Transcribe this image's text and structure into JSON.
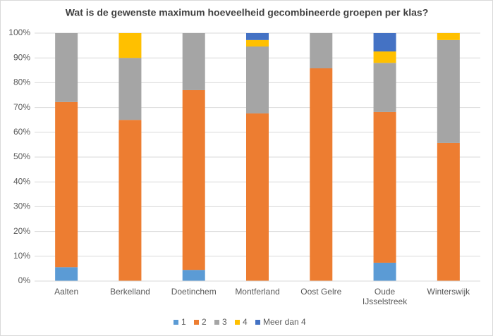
{
  "chart_data": {
    "type": "stacked_bar_percent",
    "title": "Wat is de gewenste maximum hoeveelheid gecombineerde groepen per klas?",
    "categories": [
      "Aalten",
      "Berkelland",
      "Doetinchem",
      "Montferland",
      "Oost Gelre",
      "Oude IJsselstreek",
      "Winterswijk"
    ],
    "series": [
      {
        "name": "1",
        "color": "#5b9bd5",
        "values": [
          5.6,
          0,
          4.5,
          0,
          0,
          7.4,
          0
        ]
      },
      {
        "name": "2",
        "color": "#ed7d31",
        "values": [
          66.6,
          65,
          72.5,
          67.6,
          85.8,
          60.8,
          55.7
        ]
      },
      {
        "name": "3",
        "color": "#a5a5a5",
        "values": [
          27.8,
          25,
          23,
          27,
          14.2,
          19.8,
          41.5
        ]
      },
      {
        "name": "4",
        "color": "#ffc000",
        "values": [
          0,
          10,
          0,
          2.6,
          0,
          4.6,
          2.8
        ]
      },
      {
        "name": "Meer dan 4",
        "color": "#4472c4",
        "values": [
          0,
          0,
          0,
          2.8,
          0,
          7.4,
          0
        ]
      }
    ],
    "ylim": [
      0,
      100
    ],
    "yticks": [
      {
        "value": 0,
        "label": "0%"
      },
      {
        "value": 10,
        "label": "10%"
      },
      {
        "value": 20,
        "label": "20%"
      },
      {
        "value": 30,
        "label": "30%"
      },
      {
        "value": 40,
        "label": "40%"
      },
      {
        "value": 50,
        "label": "50%"
      },
      {
        "value": 60,
        "label": "60%"
      },
      {
        "value": 70,
        "label": "70%"
      },
      {
        "value": 80,
        "label": "80%"
      },
      {
        "value": 90,
        "label": "90%"
      },
      {
        "value": 100,
        "label": "100%"
      }
    ],
    "grid": true,
    "legend": "bottom"
  }
}
